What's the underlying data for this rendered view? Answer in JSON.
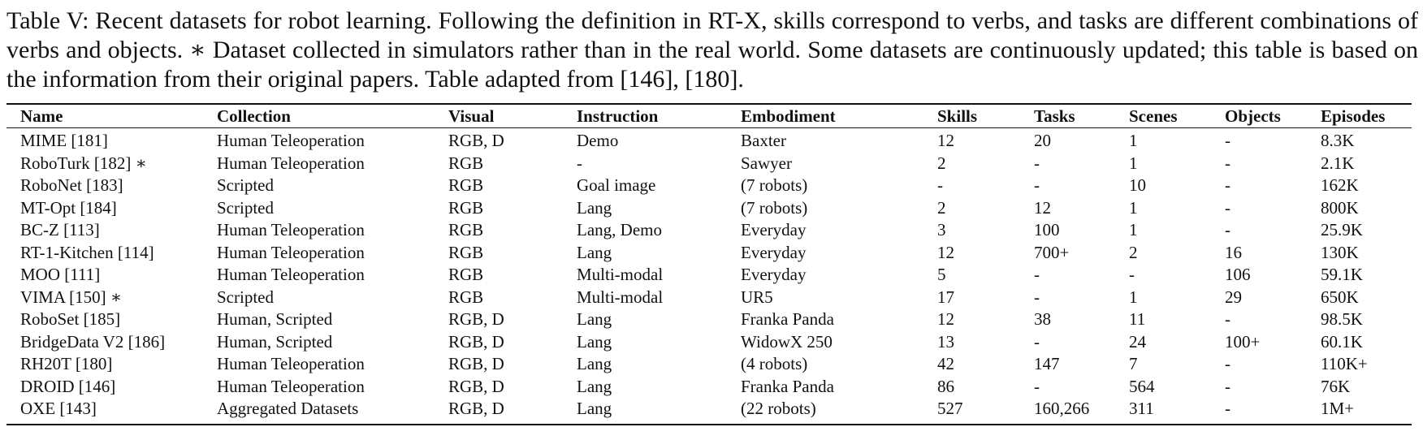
{
  "caption": "Table V: Recent datasets for robot learning. Following the definition in RT-X, skills correspond to verbs, and tasks are different combinations of verbs and objects. ∗ Dataset collected in simulators rather than in the real world. Some datasets are continuously updated; this table is based on the information from their original papers. Table adapted from [146], [180].",
  "table": {
    "columns": [
      "Name",
      "Collection",
      "Visual",
      "Instruction",
      "Embodiment",
      "Skills",
      "Tasks",
      "Scenes",
      "Objects",
      "Episodes"
    ],
    "rows": [
      [
        "MIME [181]",
        "Human Teleoperation",
        "RGB, D",
        "Demo",
        "Baxter",
        "12",
        "20",
        "1",
        "-",
        "8.3K"
      ],
      [
        "RoboTurk [182] ∗",
        "Human Teleoperation",
        "RGB",
        "-",
        "Sawyer",
        "2",
        "-",
        "1",
        "-",
        "2.1K"
      ],
      [
        "RoboNet [183]",
        "Scripted",
        "RGB",
        "Goal image",
        "(7 robots)",
        "-",
        "-",
        "10",
        "-",
        "162K"
      ],
      [
        "MT-Opt [184]",
        "Scripted",
        "RGB",
        "Lang",
        "(7 robots)",
        "2",
        "12",
        "1",
        "-",
        "800K"
      ],
      [
        "BC-Z [113]",
        "Human Teleoperation",
        "RGB",
        "Lang, Demo",
        "Everyday",
        "3",
        "100",
        "1",
        "-",
        "25.9K"
      ],
      [
        "RT-1-Kitchen [114]",
        "Human Teleoperation",
        "RGB",
        "Lang",
        "Everyday",
        "12",
        "700+",
        "2",
        "16",
        "130K"
      ],
      [
        "MOO [111]",
        "Human Teleoperation",
        "RGB",
        "Multi-modal",
        "Everyday",
        "5",
        "-",
        "-",
        "106",
        "59.1K"
      ],
      [
        "VIMA [150] ∗",
        "Scripted",
        "RGB",
        "Multi-modal",
        "UR5",
        "17",
        "-",
        "1",
        "29",
        "650K"
      ],
      [
        "RoboSet [185]",
        "Human, Scripted",
        "RGB, D",
        "Lang",
        "Franka Panda",
        "12",
        "38",
        "11",
        "-",
        "98.5K"
      ],
      [
        "BridgeData V2 [186]",
        "Human, Scripted",
        "RGB, D",
        "Lang",
        "WidowX 250",
        "13",
        "-",
        "24",
        "100+",
        "60.1K"
      ],
      [
        "RH20T [180]",
        "Human Teleoperation",
        "RGB, D",
        "Lang",
        "(4 robots)",
        "42",
        "147",
        "7",
        "-",
        "110K+"
      ],
      [
        "DROID [146]",
        "Human Teleoperation",
        "RGB, D",
        "Lang",
        "Franka Panda",
        "86",
        "-",
        "564",
        "-",
        "76K"
      ],
      [
        "OXE [143]",
        "Aggregated Datasets",
        "RGB, D",
        "Lang",
        "(22 robots)",
        "527",
        "160,266",
        "311",
        "-",
        "1M+"
      ]
    ]
  }
}
